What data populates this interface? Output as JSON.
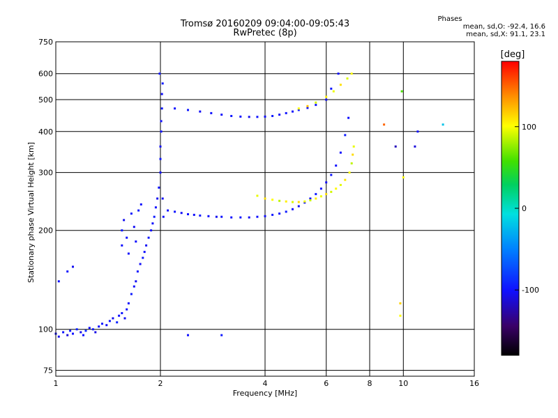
{
  "title_line1": "Tromsø 20160209 09:04:00-09:05:43",
  "title_line2": "RwPretec (8p)",
  "phases": {
    "title": "Phases",
    "o_stats": "mean, sd,O:  -92.4, 16.6",
    "x_stats": "mean, sd,X:   91.1, 23.1"
  },
  "colors": {
    "background": "#ffffff",
    "grid": "#000000",
    "axis": "#000000"
  },
  "colorbar": {
    "label": "[deg]",
    "ticks": [
      {
        "value": 100,
        "label": "100"
      },
      {
        "value": 0,
        "label": "0"
      },
      {
        "value": -100,
        "label": "-100"
      }
    ],
    "range": [
      -180,
      180
    ],
    "colormap": "rainbow"
  },
  "chart_data": {
    "type": "scatter",
    "title": "Tromsø 20160209 09:04:00-09:05:43",
    "subtitle": "RwPretec (8p)",
    "xlabel": "Frequency [MHz]",
    "ylabel": "Stationary phase Virtual Height [km]",
    "x_scale": "log",
    "y_scale": "log",
    "xlim": [
      1,
      16
    ],
    "ylim": [
      72,
      750
    ],
    "xticks": [
      1,
      2,
      4,
      6,
      8,
      10,
      16
    ],
    "xtick_labels": [
      "1",
      "2",
      "4",
      "6",
      "8",
      "10",
      "16"
    ],
    "yticks": [
      75,
      100,
      200,
      300,
      400,
      500,
      600,
      750
    ],
    "ytick_labels": [
      "75",
      "100",
      "200",
      "300",
      "400",
      "500",
      "600",
      "750"
    ],
    "grid": true,
    "color_variable": "phase [deg]",
    "series": [
      {
        "name": "O",
        "points": [
          [
            1.0,
            97,
            -100
          ],
          [
            1.02,
            95,
            -105
          ],
          [
            1.05,
            98,
            -98
          ],
          [
            1.08,
            96,
            -110
          ],
          [
            1.1,
            99,
            -95
          ],
          [
            1.12,
            97,
            -100
          ],
          [
            1.15,
            100,
            -92
          ],
          [
            1.18,
            98,
            -105
          ],
          [
            1.2,
            96,
            -100
          ],
          [
            1.22,
            99,
            -90
          ],
          [
            1.25,
            101,
            -100
          ],
          [
            1.28,
            100,
            -95
          ],
          [
            1.3,
            98,
            -108
          ],
          [
            1.33,
            102,
            -100
          ],
          [
            1.36,
            104,
            -96
          ],
          [
            1.4,
            103,
            -102
          ],
          [
            1.43,
            106,
            -98
          ],
          [
            1.46,
            108,
            -104
          ],
          [
            1.5,
            105,
            -92
          ],
          [
            1.52,
            110,
            -100
          ],
          [
            1.55,
            112,
            -97
          ],
          [
            1.58,
            108,
            -103
          ],
          [
            1.6,
            115,
            -99
          ],
          [
            1.62,
            120,
            -101
          ],
          [
            1.65,
            128,
            -95
          ],
          [
            1.68,
            135,
            -100
          ],
          [
            1.7,
            140,
            -104
          ],
          [
            1.72,
            150,
            -98
          ],
          [
            1.75,
            158,
            -102
          ],
          [
            1.78,
            165,
            -96
          ],
          [
            1.8,
            172,
            -100
          ],
          [
            1.82,
            180,
            -103
          ],
          [
            1.85,
            190,
            -97
          ],
          [
            1.88,
            200,
            -100
          ],
          [
            1.9,
            210,
            -101
          ],
          [
            1.92,
            220,
            -95
          ],
          [
            1.94,
            235,
            -100
          ],
          [
            1.96,
            250,
            -104
          ],
          [
            1.98,
            270,
            -98
          ],
          [
            2.0,
            300,
            -100
          ],
          [
            2.0,
            330,
            -97
          ],
          [
            2.0,
            360,
            -103
          ],
          [
            2.01,
            400,
            -99
          ],
          [
            2.01,
            430,
            -101
          ],
          [
            2.02,
            470,
            -96
          ],
          [
            2.02,
            520,
            -100
          ],
          [
            2.03,
            560,
            -95
          ],
          [
            1.99,
            600,
            -98
          ],
          [
            2.03,
            250,
            -102
          ],
          [
            2.04,
            220,
            -100
          ],
          [
            1.55,
            180,
            -100
          ],
          [
            1.55,
            200,
            -96
          ],
          [
            1.57,
            215,
            -104
          ],
          [
            1.6,
            190,
            -99
          ],
          [
            1.62,
            170,
            -101
          ],
          [
            1.65,
            225,
            -97
          ],
          [
            1.68,
            205,
            -103
          ],
          [
            1.7,
            185,
            -100
          ],
          [
            1.73,
            230,
            -95
          ],
          [
            1.76,
            240,
            -100
          ],
          [
            2.1,
            230,
            -100
          ],
          [
            2.2,
            228,
            -98
          ],
          [
            2.3,
            226,
            -102
          ],
          [
            2.4,
            224,
            -99
          ],
          [
            2.5,
            223,
            -101
          ],
          [
            2.6,
            222,
            -96
          ],
          [
            2.75,
            221,
            -100
          ],
          [
            2.9,
            220,
            -104
          ],
          [
            3.0,
            220,
            -98
          ],
          [
            3.2,
            219,
            -100
          ],
          [
            3.4,
            219,
            -97
          ],
          [
            3.6,
            219,
            -103
          ],
          [
            3.8,
            220,
            -99
          ],
          [
            4.0,
            221,
            -101
          ],
          [
            4.2,
            223,
            -96
          ],
          [
            4.4,
            225,
            -100
          ],
          [
            4.6,
            228,
            -95
          ],
          [
            4.8,
            232,
            -100
          ],
          [
            5.0,
            237,
            -104
          ],
          [
            5.2,
            243,
            -98
          ],
          [
            5.4,
            250,
            -102
          ],
          [
            5.6,
            258,
            -96
          ],
          [
            5.8,
            268,
            -100
          ],
          [
            6.0,
            280,
            -103
          ],
          [
            6.2,
            295,
            -97
          ],
          [
            6.4,
            315,
            -100
          ],
          [
            6.6,
            345,
            -101
          ],
          [
            6.8,
            390,
            -95
          ],
          [
            6.95,
            440,
            -100
          ],
          [
            2.2,
            470,
            -100
          ],
          [
            2.4,
            465,
            -96
          ],
          [
            2.6,
            460,
            -103
          ],
          [
            2.8,
            455,
            -99
          ],
          [
            3.0,
            450,
            -101
          ],
          [
            3.2,
            446,
            -97
          ],
          [
            3.4,
            444,
            -100
          ],
          [
            3.6,
            443,
            -104
          ],
          [
            3.8,
            443,
            -98
          ],
          [
            4.0,
            444,
            -100
          ],
          [
            4.2,
            446,
            -96
          ],
          [
            4.4,
            450,
            -102
          ],
          [
            4.6,
            455,
            -99
          ],
          [
            4.8,
            460,
            -101
          ],
          [
            5.0,
            465,
            -95
          ],
          [
            5.3,
            472,
            -100
          ],
          [
            5.6,
            482,
            -98
          ],
          [
            6.0,
            500,
            -102
          ],
          [
            6.2,
            540,
            -97
          ],
          [
            6.5,
            600,
            -100
          ]
        ]
      },
      {
        "name": "X",
        "points": [
          [
            3.8,
            255,
            95
          ],
          [
            4.0,
            250,
            110
          ],
          [
            4.2,
            248,
            100
          ],
          [
            4.4,
            246,
            85
          ],
          [
            4.6,
            245,
            105
          ],
          [
            4.8,
            244,
            92
          ],
          [
            5.0,
            244,
            112
          ],
          [
            5.2,
            245,
            98
          ],
          [
            5.4,
            247,
            88
          ],
          [
            5.6,
            250,
            104
          ],
          [
            5.8,
            254,
            96
          ],
          [
            6.0,
            258,
            110
          ],
          [
            6.2,
            262,
            90
          ],
          [
            6.4,
            268,
            102
          ],
          [
            6.6,
            275,
            94
          ],
          [
            6.8,
            285,
            108
          ],
          [
            7.0,
            300,
            100
          ],
          [
            7.1,
            320,
            86
          ],
          [
            7.15,
            340,
            112
          ],
          [
            7.2,
            360,
            95
          ],
          [
            5.0,
            470,
            100
          ],
          [
            5.3,
            478,
            120
          ],
          [
            5.6,
            490,
            90
          ],
          [
            6.0,
            510,
            105
          ],
          [
            6.3,
            530,
            96
          ],
          [
            6.6,
            555,
            110
          ],
          [
            6.9,
            580,
            92
          ],
          [
            7.1,
            600,
            100
          ],
          [
            9.8,
            120,
            115
          ],
          [
            9.8,
            110,
            100
          ]
        ]
      }
    ],
    "stray_points": [
      [
        1.02,
        140,
        -100
      ],
      [
        1.08,
        150,
        -98
      ],
      [
        1.12,
        155,
        -104
      ],
      [
        2.4,
        96,
        -100
      ],
      [
        3.0,
        96,
        -96
      ],
      [
        8.8,
        420,
        150
      ],
      [
        9.5,
        360,
        -120
      ],
      [
        10.8,
        360,
        -110
      ],
      [
        11.0,
        400,
        -100
      ],
      [
        13.0,
        420,
        -20
      ],
      [
        9.9,
        530,
        60
      ],
      [
        10.0,
        290,
        100
      ]
    ]
  }
}
